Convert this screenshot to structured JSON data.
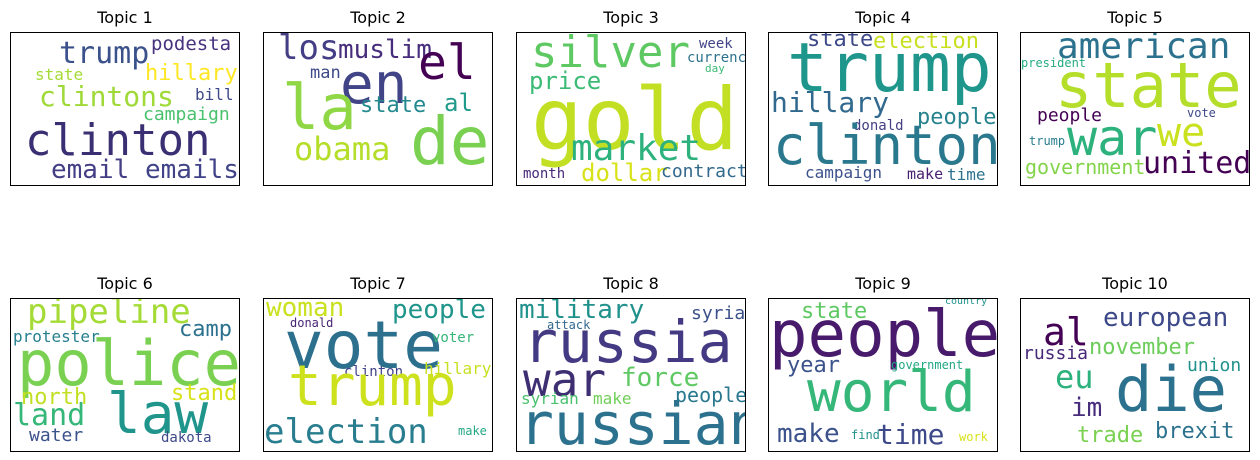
{
  "chart_data": [
    {
      "type": "wordcloud",
      "title": "Topic 1",
      "words": [
        {
          "text": "trump",
          "color": "#3b518b"
        },
        {
          "text": "podesta",
          "color": "#46327e"
        },
        {
          "text": "state",
          "color": "#a5db36"
        },
        {
          "text": "hillary",
          "color": "#fde725"
        },
        {
          "text": "clintons",
          "color": "#a0da39"
        },
        {
          "text": "bill",
          "color": "#3e4989"
        },
        {
          "text": "campaign",
          "color": "#4ac16d"
        },
        {
          "text": "clinton",
          "color": "#3b2f74"
        },
        {
          "text": "email",
          "color": "#433e85"
        },
        {
          "text": "emails",
          "color": "#404387"
        }
      ]
    },
    {
      "type": "wordcloud",
      "title": "Topic 2",
      "words": [
        {
          "text": "los",
          "color": "#433e85"
        },
        {
          "text": "muslim",
          "color": "#472d7b"
        },
        {
          "text": "en",
          "color": "#414487"
        },
        {
          "text": "el",
          "color": "#440154"
        },
        {
          "text": "man",
          "color": "#3e4a89"
        },
        {
          "text": "la",
          "color": "#8fd744"
        },
        {
          "text": "state",
          "color": "#23898e"
        },
        {
          "text": "al",
          "color": "#1f9a8a"
        },
        {
          "text": "obama",
          "color": "#b5de2b"
        },
        {
          "text": "de",
          "color": "#7ad151"
        }
      ]
    },
    {
      "type": "wordcloud",
      "title": "Topic 3",
      "words": [
        {
          "text": "silver",
          "color": "#5ec962"
        },
        {
          "text": "week",
          "color": "#414487"
        },
        {
          "text": "currency",
          "color": "#2c728e"
        },
        {
          "text": "day",
          "color": "#3bbb75"
        },
        {
          "text": "price",
          "color": "#3bbb75"
        },
        {
          "text": "gold",
          "color": "#c2df23"
        },
        {
          "text": "market",
          "color": "#2db27d"
        },
        {
          "text": "month",
          "color": "#482878"
        },
        {
          "text": "dollar",
          "color": "#d8e219"
        },
        {
          "text": "contract",
          "color": "#31688e"
        }
      ]
    },
    {
      "type": "wordcloud",
      "title": "Topic 4",
      "words": [
        {
          "text": "state",
          "color": "#3e4989"
        },
        {
          "text": "election",
          "color": "#c8e020"
        },
        {
          "text": "trump",
          "color": "#1f968b"
        },
        {
          "text": "hillary",
          "color": "#31688e"
        },
        {
          "text": "donald",
          "color": "#433e85"
        },
        {
          "text": "people",
          "color": "#26828e"
        },
        {
          "text": "clinton",
          "color": "#2a788e"
        },
        {
          "text": "campaign",
          "color": "#3b518b"
        },
        {
          "text": "make",
          "color": "#481f70"
        },
        {
          "text": "time",
          "color": "#2c728e"
        }
      ]
    },
    {
      "type": "wordcloud",
      "title": "Topic 5",
      "words": [
        {
          "text": "american",
          "color": "#2c728e"
        },
        {
          "text": "president",
          "color": "#25ab82"
        },
        {
          "text": "state",
          "color": "#b5de2b"
        },
        {
          "text": "people",
          "color": "#440154"
        },
        {
          "text": "war",
          "color": "#2db27d"
        },
        {
          "text": "we",
          "color": "#cae11f"
        },
        {
          "text": "vote",
          "color": "#3e4989"
        },
        {
          "text": "trump",
          "color": "#287d8e"
        },
        {
          "text": "government",
          "color": "#84d44b"
        },
        {
          "text": "united",
          "color": "#440154"
        }
      ]
    },
    {
      "type": "wordcloud",
      "title": "Topic 6",
      "words": [
        {
          "text": "pipeline",
          "color": "#a5db36"
        },
        {
          "text": "camp",
          "color": "#2c728e"
        },
        {
          "text": "protester",
          "color": "#277f8e"
        },
        {
          "text": "police",
          "color": "#7ad151"
        },
        {
          "text": "north",
          "color": "#c2df23"
        },
        {
          "text": "stand",
          "color": "#d8e219"
        },
        {
          "text": "land",
          "color": "#35b779"
        },
        {
          "text": "law",
          "color": "#1f958b"
        },
        {
          "text": "water",
          "color": "#3b528b"
        },
        {
          "text": "dakota",
          "color": "#3e4989"
        }
      ]
    },
    {
      "type": "wordcloud",
      "title": "Topic 7",
      "words": [
        {
          "text": "woman",
          "color": "#cae11f"
        },
        {
          "text": "people",
          "color": "#1f958b"
        },
        {
          "text": "donald",
          "color": "#482475"
        },
        {
          "text": "vote",
          "color": "#2d708e"
        },
        {
          "text": "voter",
          "color": "#35b779"
        },
        {
          "text": "clinton",
          "color": "#404387"
        },
        {
          "text": "trump",
          "color": "#cde11d"
        },
        {
          "text": "hillary",
          "color": "#c8e020"
        },
        {
          "text": "election",
          "color": "#287d8e"
        },
        {
          "text": "make",
          "color": "#22a884"
        }
      ]
    },
    {
      "type": "wordcloud",
      "title": "Topic 8",
      "words": [
        {
          "text": "military",
          "color": "#21918c"
        },
        {
          "text": "syria",
          "color": "#3b518b"
        },
        {
          "text": "attack",
          "color": "#31688e"
        },
        {
          "text": "russia",
          "color": "#443983"
        },
        {
          "text": "war",
          "color": "#3e2f73"
        },
        {
          "text": "force",
          "color": "#5ec962"
        },
        {
          "text": "syrian",
          "color": "#4ac16d"
        },
        {
          "text": "make",
          "color": "#70cf57"
        },
        {
          "text": "people",
          "color": "#2a788e"
        },
        {
          "text": "russian",
          "color": "#2c728e"
        }
      ]
    },
    {
      "type": "wordcloud",
      "title": "Topic 9",
      "words": [
        {
          "text": "state",
          "color": "#5ec962"
        },
        {
          "text": "country",
          "color": "#21918c"
        },
        {
          "text": "people",
          "color": "#481a6c"
        },
        {
          "text": "year",
          "color": "#3b528b"
        },
        {
          "text": "government",
          "color": "#22a884"
        },
        {
          "text": "world",
          "color": "#35b779"
        },
        {
          "text": "make",
          "color": "#3b528b"
        },
        {
          "text": "find",
          "color": "#21918c"
        },
        {
          "text": "time",
          "color": "#3e4989"
        },
        {
          "text": "work",
          "color": "#d8e219"
        }
      ]
    },
    {
      "type": "wordcloud",
      "title": "Topic 10",
      "words": [
        {
          "text": "al",
          "color": "#440154"
        },
        {
          "text": "european",
          "color": "#3e4989"
        },
        {
          "text": "russia",
          "color": "#482878"
        },
        {
          "text": "november",
          "color": "#6ccd5a"
        },
        {
          "text": "eu",
          "color": "#2db27d"
        },
        {
          "text": "union",
          "color": "#21918c"
        },
        {
          "text": "die",
          "color": "#2c728e"
        },
        {
          "text": "im",
          "color": "#472d7b"
        },
        {
          "text": "trade",
          "color": "#7ad151"
        },
        {
          "text": "brexit",
          "color": "#2c728e"
        }
      ]
    }
  ]
}
